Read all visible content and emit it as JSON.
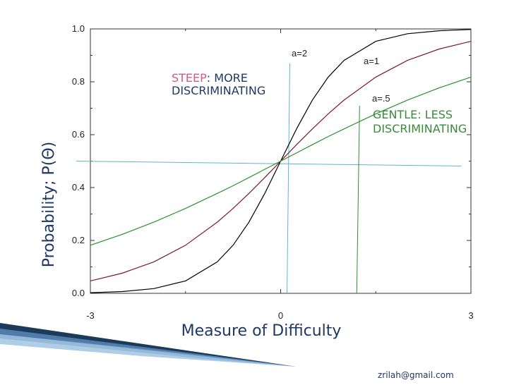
{
  "chart_data": {
    "type": "line",
    "xlabel": "Measure of Difficulty",
    "ylabel": "Probability; P(Θ)",
    "xlim": [
      -3,
      3
    ],
    "ylim": [
      0,
      1
    ],
    "x_ticks": [
      {
        "value": -3,
        "label": "-3"
      },
      {
        "value": 0,
        "label": "0"
      },
      {
        "value": 3,
        "label": "3"
      }
    ],
    "y_ticks": [
      {
        "value": 0.0,
        "label": "0.0"
      },
      {
        "value": 0.2,
        "label": "0.2"
      },
      {
        "value": 0.4,
        "label": "0.4"
      },
      {
        "value": 0.6,
        "label": "0.6"
      },
      {
        "value": 0.8,
        "label": "0.8"
      },
      {
        "value": 1.0,
        "label": "1.0"
      }
    ],
    "x": [
      -3,
      -2.5,
      -2,
      -1.5,
      -1,
      -0.75,
      -0.5,
      -0.25,
      0,
      0.25,
      0.5,
      0.75,
      1,
      1.5,
      2,
      2.5,
      3
    ],
    "series": [
      {
        "name": "a=2",
        "color": "#000000",
        "values": [
          0.0025,
          0.0067,
          0.018,
          0.047,
          0.119,
          0.182,
          0.269,
          0.378,
          0.5,
          0.622,
          0.731,
          0.818,
          0.881,
          0.953,
          0.982,
          0.993,
          0.998
        ]
      },
      {
        "name": "a=1",
        "color": "#7a1a2e",
        "values": [
          0.047,
          0.076,
          0.119,
          0.182,
          0.269,
          0.321,
          0.378,
          0.438,
          0.5,
          0.562,
          0.622,
          0.679,
          0.731,
          0.818,
          0.881,
          0.924,
          0.953
        ]
      },
      {
        "name": "a=.5",
        "color": "#2f8f2f",
        "values": [
          0.182,
          0.223,
          0.269,
          0.321,
          0.378,
          0.407,
          0.438,
          0.469,
          0.5,
          0.531,
          0.562,
          0.593,
          0.622,
          0.679,
          0.731,
          0.777,
          0.818
        ]
      }
    ],
    "reference_lines": [
      {
        "orientation": "horizontal",
        "value": 0.5,
        "color": "#5fb7c9"
      },
      {
        "orientation": "vertical",
        "value": 0.1,
        "color": "#5fb7c9"
      },
      {
        "orientation": "vertical",
        "value": 1.2,
        "color": "#2f8f2f"
      }
    ],
    "annotations": {
      "steep_keyword": "STEEP",
      "steep_rest": ": MORE",
      "steep_line2": "DISCRIMINATING",
      "gentle_line1": "GENTLE: LESS",
      "gentle_line2": "DISCRIMINATING"
    },
    "grid": false,
    "legend": "none"
  },
  "footer": {
    "email": "zrilah@gmail.com"
  },
  "colors": {
    "title_blue": "#1f3864",
    "steep_pink": "#d05a8a",
    "gentle_green": "#3a8a3a",
    "ref_cyan": "#5fb7c9"
  }
}
